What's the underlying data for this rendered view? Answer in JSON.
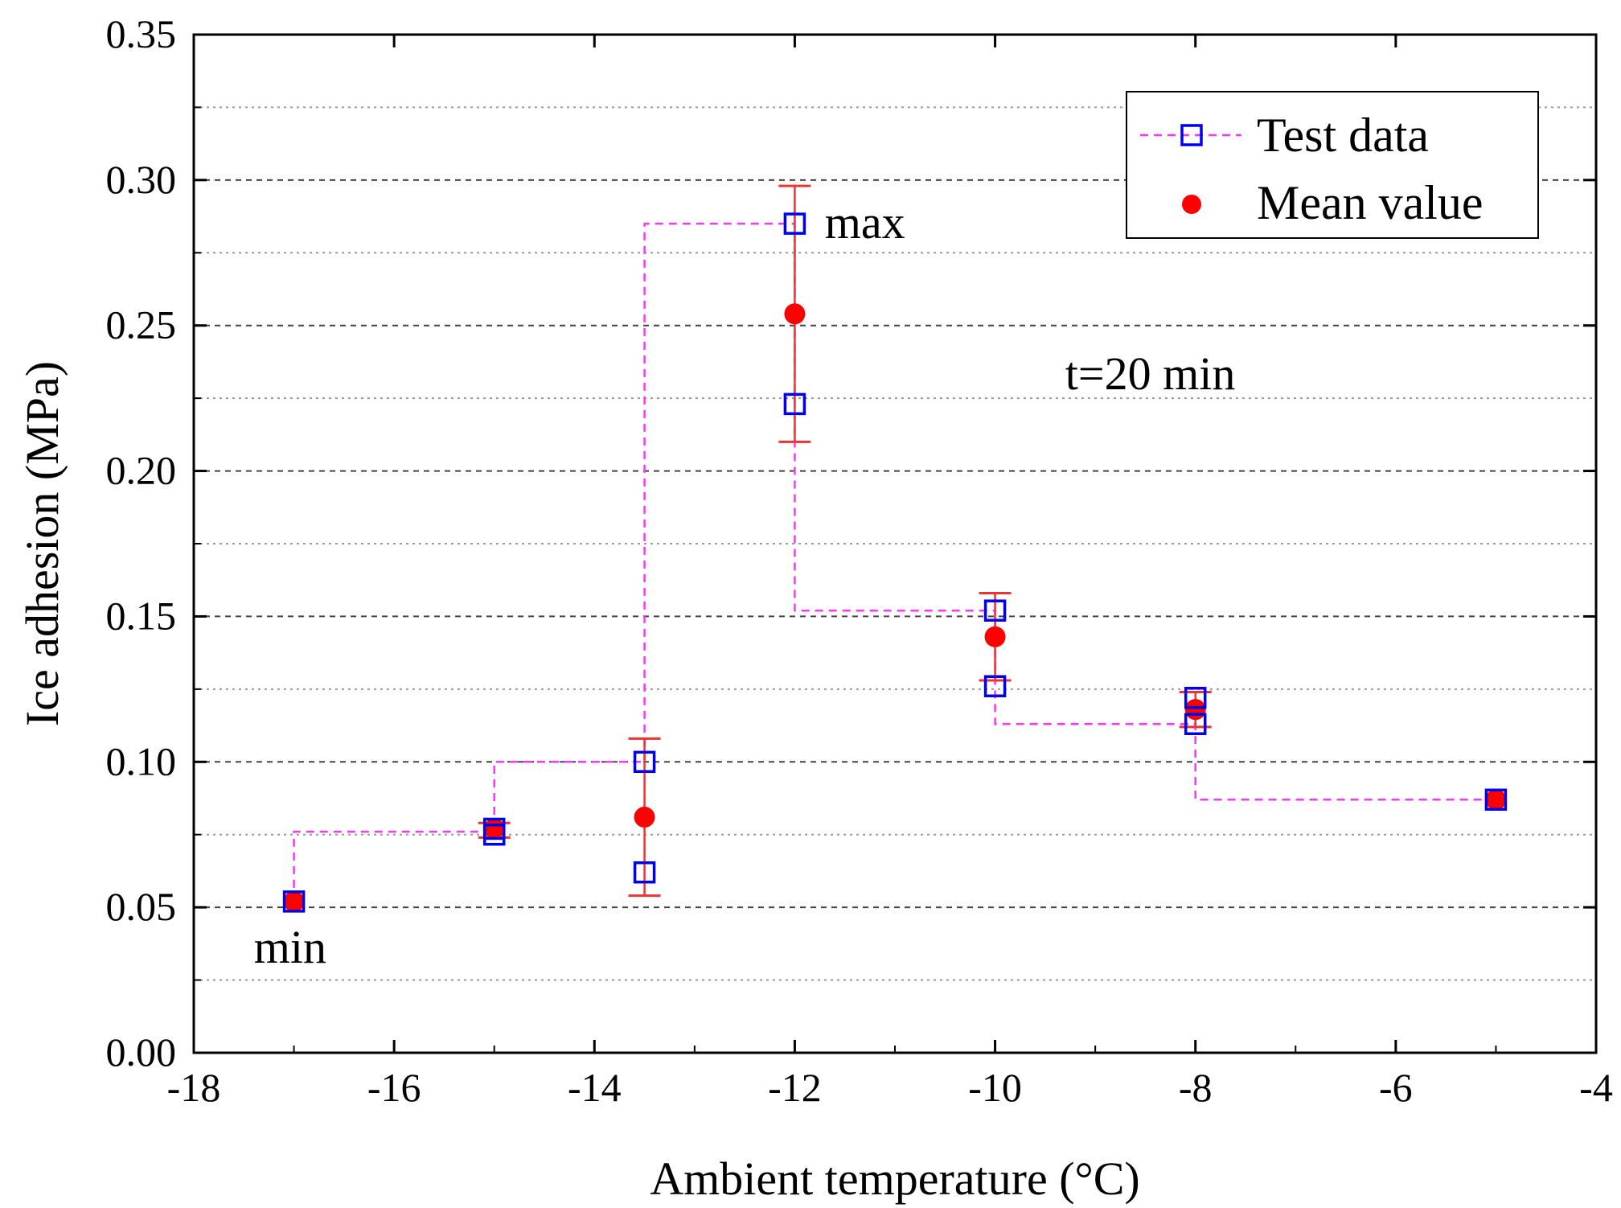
{
  "chart_data": {
    "type": "scatter",
    "xlabel": "Ambient temperature (°C)",
    "ylabel": "Ice adhesion (MPa)",
    "xlim": [
      -18,
      -4
    ],
    "ylim": [
      0,
      0.35
    ],
    "x_ticks": [
      -18,
      -16,
      -14,
      -12,
      -10,
      -8,
      -6,
      -4
    ],
    "x_tick_labels": [
      "-18",
      "-16",
      "-14",
      "-12",
      "-10",
      "-8",
      "-6",
      "-4"
    ],
    "y_ticks": [
      0,
      0.05,
      0.1,
      0.15,
      0.2,
      0.25,
      0.3,
      0.35
    ],
    "y_tick_labels": [
      "0.00",
      "0.05",
      "0.10",
      "0.15",
      "0.20",
      "0.25",
      "0.30",
      "0.35"
    ],
    "grid": "horizontal dashed",
    "legend_position": "top-right",
    "colors": {
      "test": "#0000ee",
      "mean": "#ff0000",
      "step": "#ff33ff",
      "grid": "#444444"
    },
    "series": [
      {
        "name": "Test data",
        "marker": "open-square",
        "points": [
          {
            "x": -17,
            "y": 0.052
          },
          {
            "x": -15,
            "y": 0.075
          },
          {
            "x": -15,
            "y": 0.077
          },
          {
            "x": -13.5,
            "y": 0.062
          },
          {
            "x": -13.5,
            "y": 0.1
          },
          {
            "x": -12,
            "y": 0.223
          },
          {
            "x": -12,
            "y": 0.285
          },
          {
            "x": -10,
            "y": 0.126
          },
          {
            "x": -10,
            "y": 0.152
          },
          {
            "x": -8,
            "y": 0.113
          },
          {
            "x": -8,
            "y": 0.122
          },
          {
            "x": -5,
            "y": 0.087
          }
        ]
      },
      {
        "name": "Mean value",
        "marker": "filled-circle",
        "points": [
          {
            "x": -17,
            "y": 0.052,
            "err_low": 0.052,
            "err_high": 0.052
          },
          {
            "x": -15,
            "y": 0.077,
            "err_low": 0.074,
            "err_high": 0.079
          },
          {
            "x": -13.5,
            "y": 0.081,
            "err_low": 0.054,
            "err_high": 0.108
          },
          {
            "x": -12,
            "y": 0.254,
            "err_low": 0.21,
            "err_high": 0.298
          },
          {
            "x": -10,
            "y": 0.143,
            "err_low": 0.128,
            "err_high": 0.158
          },
          {
            "x": -8,
            "y": 0.118,
            "err_low": 0.112,
            "err_high": 0.124
          },
          {
            "x": -5,
            "y": 0.087,
            "err_low": 0.087,
            "err_high": 0.087
          }
        ]
      }
    ],
    "step_line": {
      "name": "Test data",
      "x": [
        -17,
        -15,
        -13.5,
        -12,
        -10,
        -8,
        -5
      ],
      "y": [
        0.076,
        0.1,
        0.285,
        0.152,
        0.113,
        0.087,
        0.087
      ]
    },
    "annotations": [
      {
        "text": "max",
        "x": -11.7,
        "y": 0.285
      },
      {
        "text": "min",
        "x": -17.4,
        "y": 0.036
      },
      {
        "text": "t=20 min",
        "x": -9.3,
        "y": 0.233
      }
    ],
    "legend": [
      {
        "label": "Test data",
        "series": 0
      },
      {
        "label": "Mean value",
        "series": 1
      }
    ]
  }
}
